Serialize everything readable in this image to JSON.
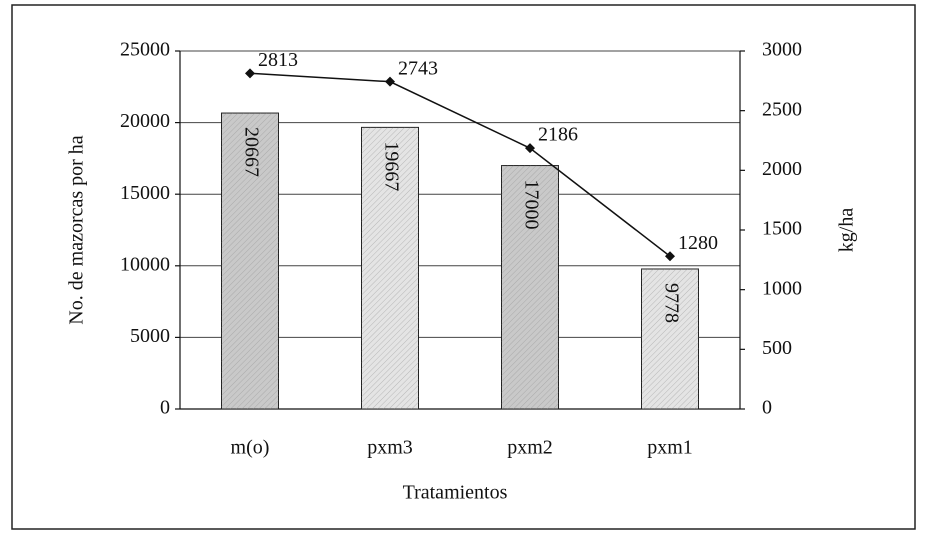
{
  "chart_data": {
    "type": "bar",
    "categories": [
      "m(o)",
      "pxm3",
      "pxm2",
      "pxm1"
    ],
    "xlabel": "Tratamientos",
    "ylabel": "No. de mazorcas por ha",
    "y2label": "kg/ha",
    "ylim": [
      0,
      25000
    ],
    "yticks": [
      0,
      5000,
      10000,
      15000,
      20000,
      25000
    ],
    "y2lim": [
      0,
      3000
    ],
    "y2ticks": [
      0,
      500,
      1000,
      1500,
      2000,
      2500,
      3000
    ],
    "grid": true,
    "series": [
      {
        "type": "bar",
        "colors": [
          "#c9c9c9",
          "#e4e4e4",
          "#c9c9c9",
          "#e4e4e4"
        ],
        "values": [
          20667,
          19667,
          17000,
          9778
        ]
      },
      {
        "type": "line",
        "axis": "y2",
        "color": "#111",
        "values": [
          2813,
          2743,
          2186,
          1280
        ]
      }
    ]
  }
}
